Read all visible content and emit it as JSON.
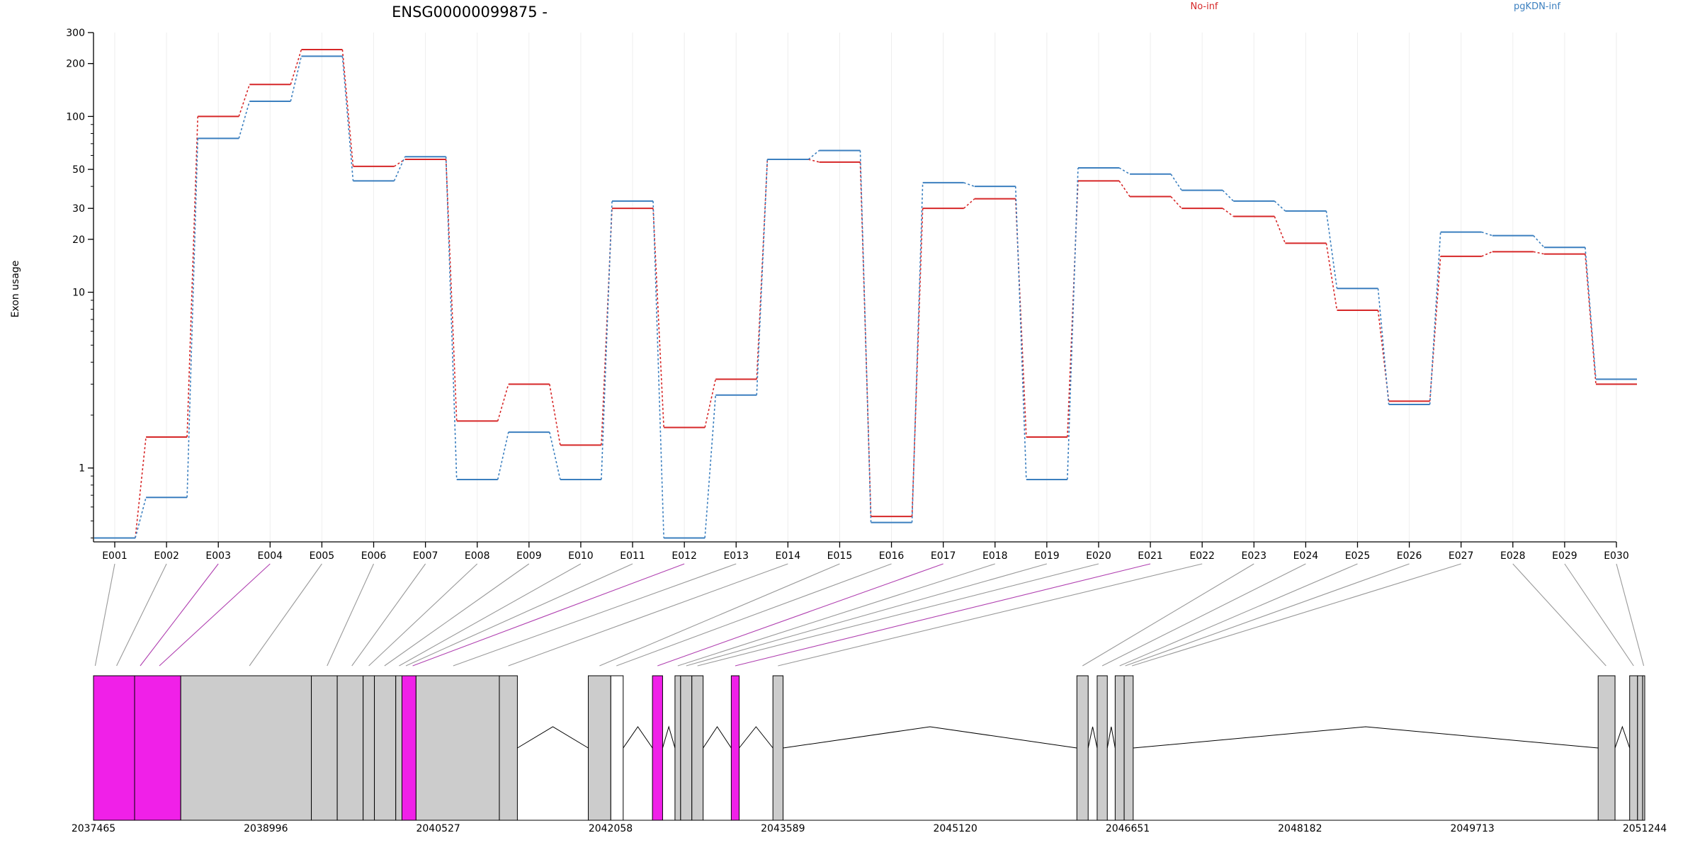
{
  "chart_data": {
    "type": "line",
    "title": "ENSG00000099875 -",
    "xlabel": "",
    "ylabel": "Exon usage",
    "y_scale": "log",
    "ylim": [
      0.38,
      300
    ],
    "y_ticks": [
      1,
      10,
      20,
      30,
      50,
      100,
      200,
      300
    ],
    "grid": "vertical",
    "legend_position": "top",
    "categories": [
      "E001",
      "E002",
      "E003",
      "E004",
      "E005",
      "E006",
      "E007",
      "E008",
      "E009",
      "E010",
      "E011",
      "E012",
      "E013",
      "E014",
      "E015",
      "E016",
      "E017",
      "E018",
      "E019",
      "E020",
      "E021",
      "E022",
      "E023",
      "E024",
      "E025",
      "E026",
      "E027",
      "E028",
      "E029",
      "E030"
    ],
    "series": [
      {
        "name": "No-inf",
        "color": "#d62728",
        "values": [
          0.4,
          1.5,
          100,
          152,
          240,
          52,
          57,
          1.85,
          3.0,
          1.35,
          30,
          1.7,
          3.2,
          57,
          55,
          0.53,
          30,
          34,
          1.5,
          43,
          35,
          30,
          27,
          19,
          7.9,
          2.4,
          16,
          17,
          16.5,
          3.0
        ]
      },
      {
        "name": "pgKDN-inf",
        "color": "#3b7fbf",
        "values": [
          0.4,
          0.68,
          75,
          122,
          220,
          43,
          59,
          0.86,
          1.6,
          0.86,
          33,
          0.4,
          2.6,
          57,
          64,
          0.49,
          42,
          40,
          0.86,
          51,
          47,
          38,
          33,
          29,
          10.5,
          2.3,
          22,
          21,
          18,
          3.2
        ]
      }
    ],
    "gene_axis": {
      "ticks": [
        "2037465",
        "2038996",
        "2040527",
        "2042058",
        "2043589",
        "2045120",
        "2046651",
        "2048182",
        "2049713",
        "2051244"
      ],
      "range": [
        2037465,
        2051244
      ]
    }
  },
  "gene_model": {
    "exons": [
      {
        "start": 2037465,
        "end": 2037830,
        "highlight": true
      },
      {
        "start": 2037830,
        "end": 2038240,
        "highlight": true
      },
      {
        "start": 2038240,
        "end": 2039400,
        "highlight": false
      },
      {
        "start": 2039400,
        "end": 2039630,
        "highlight": false
      },
      {
        "start": 2039630,
        "end": 2039860,
        "highlight": false
      },
      {
        "start": 2039860,
        "end": 2039960,
        "highlight": false
      },
      {
        "start": 2039960,
        "end": 2040150,
        "highlight": false
      },
      {
        "start": 2040150,
        "end": 2040205,
        "highlight": false
      },
      {
        "start": 2040205,
        "end": 2040330,
        "highlight": true
      },
      {
        "start": 2040330,
        "end": 2041070,
        "highlight": false
      },
      {
        "start": 2041070,
        "end": 2041230,
        "highlight": false
      },
      {
        "start": 2041860,
        "end": 2042060,
        "highlight": false
      },
      {
        "start": 2042060,
        "end": 2042170,
        "highlight": "outline"
      },
      {
        "start": 2042430,
        "end": 2042520,
        "highlight": true
      },
      {
        "start": 2042630,
        "end": 2042680,
        "highlight": false
      },
      {
        "start": 2042680,
        "end": 2042780,
        "highlight": false
      },
      {
        "start": 2042780,
        "end": 2042880,
        "highlight": false
      },
      {
        "start": 2043130,
        "end": 2043200,
        "highlight": true
      },
      {
        "start": 2043500,
        "end": 2043590,
        "highlight": false
      },
      {
        "start": 2046200,
        "end": 2046300,
        "highlight": false
      },
      {
        "start": 2046380,
        "end": 2046470,
        "highlight": false
      },
      {
        "start": 2046540,
        "end": 2046620,
        "highlight": false
      },
      {
        "start": 2046620,
        "end": 2046700,
        "highlight": false
      },
      {
        "start": 2050830,
        "end": 2050980,
        "highlight": false
      },
      {
        "start": 2051110,
        "end": 2051180,
        "highlight": false
      },
      {
        "start": 2051180,
        "end": 2051225,
        "highlight": false
      },
      {
        "start": 2051225,
        "end": 2051244,
        "highlight": false
      }
    ],
    "connectors": [
      {
        "exon": "E001",
        "pos": 2037480,
        "highlight": false
      },
      {
        "exon": "E002",
        "pos": 2037670,
        "highlight": false
      },
      {
        "exon": "E003",
        "pos": 2037880,
        "highlight": true
      },
      {
        "exon": "E004",
        "pos": 2038050,
        "highlight": true
      },
      {
        "exon": "E005",
        "pos": 2038850,
        "highlight": false
      },
      {
        "exon": "E006",
        "pos": 2039540,
        "highlight": false
      },
      {
        "exon": "E007",
        "pos": 2039760,
        "highlight": false
      },
      {
        "exon": "E008",
        "pos": 2039910,
        "highlight": false
      },
      {
        "exon": "E009",
        "pos": 2040050,
        "highlight": false
      },
      {
        "exon": "E010",
        "pos": 2040180,
        "highlight": false
      },
      {
        "exon": "E011",
        "pos": 2040240,
        "highlight": false
      },
      {
        "exon": "E012",
        "pos": 2040300,
        "highlight": true
      },
      {
        "exon": "E013",
        "pos": 2040660,
        "highlight": false
      },
      {
        "exon": "E014",
        "pos": 2041150,
        "highlight": false
      },
      {
        "exon": "E015",
        "pos": 2041960,
        "highlight": false
      },
      {
        "exon": "E016",
        "pos": 2042110,
        "highlight": false
      },
      {
        "exon": "E017",
        "pos": 2042475,
        "highlight": true
      },
      {
        "exon": "E018",
        "pos": 2042655,
        "highlight": false
      },
      {
        "exon": "E019",
        "pos": 2042730,
        "highlight": false
      },
      {
        "exon": "E020",
        "pos": 2042830,
        "highlight": false
      },
      {
        "exon": "E021",
        "pos": 2043165,
        "highlight": true
      },
      {
        "exon": "E022",
        "pos": 2043545,
        "highlight": false
      },
      {
        "exon": "E023",
        "pos": 2046250,
        "highlight": false
      },
      {
        "exon": "E024",
        "pos": 2046425,
        "highlight": false
      },
      {
        "exon": "E025",
        "pos": 2046580,
        "highlight": false
      },
      {
        "exon": "E026",
        "pos": 2046630,
        "highlight": false
      },
      {
        "exon": "E027",
        "pos": 2046690,
        "highlight": false
      },
      {
        "exon": "E028",
        "pos": 2050900,
        "highlight": false
      },
      {
        "exon": "E029",
        "pos": 2051145,
        "highlight": false
      },
      {
        "exon": "E030",
        "pos": 2051235,
        "highlight": false
      }
    ]
  },
  "colors": {
    "highlight_exon": "#f020e8",
    "plain_exon": "#cccccc",
    "highlight_connector": "#b040b0",
    "plain_connector": "#999999",
    "grid": "#eeeeee"
  }
}
